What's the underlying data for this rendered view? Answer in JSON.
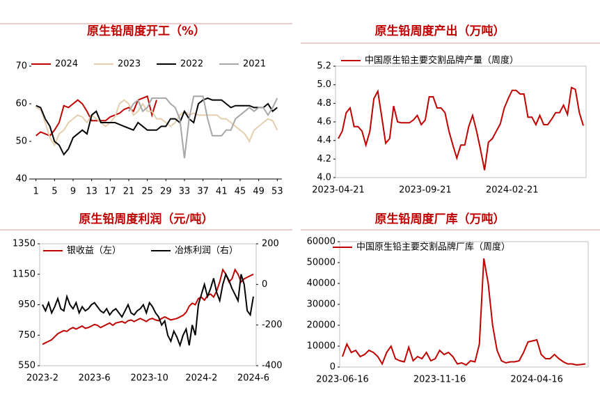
{
  "chart_data": [
    {
      "type": "line",
      "title": "原生铅周度开工（%）",
      "x": [
        1,
        2,
        3,
        4,
        5,
        6,
        7,
        8,
        9,
        10,
        11,
        12,
        13,
        14,
        15,
        16,
        17,
        18,
        19,
        20,
        21,
        22,
        23,
        24,
        25,
        26,
        27,
        28,
        29,
        30,
        31,
        32,
        33,
        34,
        35,
        36,
        37,
        38,
        39,
        40,
        41,
        42,
        43,
        44,
        45,
        46,
        47,
        48,
        49,
        50,
        51,
        52,
        53
      ],
      "xlim": [
        0,
        54
      ],
      "xticks": [
        1,
        5,
        9,
        13,
        17,
        21,
        25,
        29,
        33,
        37,
        41,
        45,
        49,
        53
      ],
      "ylim": [
        40,
        70
      ],
      "yticks": [
        40,
        50,
        60,
        70
      ],
      "series": [
        {
          "name": "2024",
          "color": "#c00000",
          "values": [
            51.5,
            52.5,
            52,
            51.5,
            53,
            55,
            59.5,
            59,
            60,
            61,
            60,
            58,
            55.5,
            55.5,
            55.5,
            55.5,
            56.5,
            57,
            57.5,
            58.5,
            59,
            58,
            61,
            61.5,
            62,
            57,
            61,
            null,
            null,
            null,
            null,
            null,
            null,
            null,
            null,
            null,
            null,
            null,
            null,
            null,
            null,
            null,
            null,
            null,
            null,
            null,
            null,
            null,
            null,
            null,
            null,
            null,
            null
          ]
        },
        {
          "name": "2023",
          "color": "#e3cfad",
          "values": [
            59,
            58.5,
            55,
            51,
            49,
            52,
            53,
            55,
            56,
            57,
            56.5,
            55,
            57,
            56,
            55,
            54,
            55,
            56.5,
            60,
            61,
            60,
            57,
            58,
            60,
            58,
            58,
            56,
            56,
            55,
            54,
            55,
            57,
            58,
            57,
            57.5,
            57,
            57,
            57,
            57,
            57,
            56,
            56,
            55,
            54,
            53,
            52,
            50,
            53,
            54,
            55,
            56,
            55.5,
            53
          ]
        },
        {
          "name": "2022",
          "color": "#000000",
          "values": [
            59.5,
            59,
            56,
            54,
            50,
            49,
            46.5,
            48,
            51,
            52,
            53,
            52,
            57,
            58,
            55,
            55,
            55,
            55,
            54.5,
            54,
            53.5,
            53,
            55,
            54,
            53,
            53,
            53,
            54,
            54,
            56,
            56,
            55,
            58,
            56,
            55,
            60,
            61,
            61.5,
            61,
            61,
            61,
            60,
            59,
            59.5,
            59.5,
            59.5,
            59.5,
            59,
            59,
            59,
            60,
            58,
            59
          ]
        },
        {
          "name": "2021",
          "color": "#a6a6a6",
          "values": [
            null,
            null,
            null,
            null,
            null,
            null,
            null,
            null,
            null,
            null,
            null,
            null,
            null,
            null,
            null,
            null,
            null,
            null,
            null,
            null,
            58,
            60,
            61,
            58,
            59,
            61.5,
            61.5,
            61.5,
            61.5,
            60,
            59,
            56,
            45.5,
            56,
            62,
            62,
            62,
            56,
            51.5,
            51.5,
            51.5,
            53,
            53,
            56,
            57,
            58,
            59,
            58,
            59,
            59,
            57,
            59,
            61.5
          ]
        }
      ]
    },
    {
      "type": "line",
      "title": "原生铅周度产出（万吨）",
      "categories": [
        "2023-04-21",
        null,
        null,
        null,
        null,
        null,
        null,
        null,
        null,
        null,
        null,
        null,
        null,
        null,
        null,
        null,
        null,
        null,
        null,
        null,
        null,
        null,
        "2023-09-21",
        null,
        null,
        null,
        null,
        null,
        null,
        null,
        null,
        null,
        null,
        null,
        null,
        null,
        null,
        null,
        null,
        null,
        null,
        null,
        null,
        null,
        "2024-02-21",
        null,
        null,
        null,
        null,
        null,
        null,
        null,
        null,
        null,
        null,
        null,
        null,
        null,
        null,
        null,
        null,
        null,
        null
      ],
      "ylim": [
        4,
        5.2
      ],
      "yticks": [
        {
          "value": 4,
          "label": "4.0"
        },
        4.2,
        4.4,
        4.6,
        4.8,
        {
          "value": 5,
          "label": "5.0"
        },
        5.2
      ],
      "series": [
        {
          "name": "中国原生铅主要交割品牌产量（周度）",
          "color": "#c00000",
          "values": [
            4.42,
            4.5,
            4.7,
            4.75,
            4.55,
            4.55,
            4.5,
            4.35,
            4.5,
            4.85,
            4.93,
            4.65,
            4.37,
            4.42,
            4.77,
            4.6,
            4.59,
            4.59,
            4.59,
            4.62,
            4.67,
            4.57,
            4.62,
            4.87,
            4.87,
            4.75,
            4.75,
            4.7,
            4.5,
            4.35,
            4.21,
            4.35,
            4.35,
            4.55,
            4.67,
            4.5,
            4.3,
            4.08,
            4.38,
            4.42,
            4.5,
            4.58,
            4.75,
            4.85,
            4.94,
            4.94,
            4.9,
            4.9,
            4.65,
            4.65,
            4.57,
            4.67,
            4.57,
            4.57,
            4.63,
            4.7,
            4.7,
            4.78,
            4.68,
            4.97,
            4.95,
            4.7,
            4.56
          ]
        }
      ]
    },
    {
      "type": "line",
      "title": "原生铅周度利润（元/吨）",
      "categories": [
        "2023-2",
        null,
        null,
        null,
        null,
        null,
        null,
        null,
        null,
        null,
        null,
        null,
        null,
        null,
        null,
        null,
        null,
        "2023-6",
        null,
        null,
        null,
        null,
        null,
        null,
        null,
        null,
        null,
        null,
        null,
        null,
        null,
        null,
        null,
        null,
        null,
        "2023-10",
        null,
        null,
        null,
        null,
        null,
        null,
        null,
        null,
        null,
        null,
        null,
        null,
        null,
        null,
        null,
        null,
        "2024-2",
        null,
        null,
        null,
        null,
        null,
        null,
        null,
        null,
        null,
        null,
        null,
        null,
        null,
        null,
        null,
        null,
        "2024-6"
      ],
      "ylim": [
        550,
        1350
      ],
      "yticks": [
        550,
        750,
        950,
        1150,
        1350
      ],
      "y2lim": [
        -400,
        200
      ],
      "y2ticks": [
        -400,
        -200,
        0,
        200
      ],
      "series": [
        {
          "name": "银收益（左）",
          "color": "#c00000",
          "values": [
            690,
            700,
            710,
            720,
            740,
            760,
            770,
            780,
            775,
            790,
            800,
            790,
            800,
            810,
            795,
            800,
            810,
            820,
            815,
            800,
            810,
            820,
            830,
            815,
            830,
            835,
            840,
            830,
            845,
            850,
            840,
            850,
            860,
            850,
            840,
            855,
            860,
            850,
            845,
            860,
            870,
            860,
            850,
            855,
            860,
            870,
            880,
            900,
            940,
            960,
            950,
            990,
            1000,
            980,
            1010,
            1020,
            1000,
            1040,
            1100,
            1180,
            1150,
            1100,
            1120,
            1180,
            1150,
            1100,
            1120,
            1130,
            1140,
            1150
          ]
        },
        {
          "name": "冶炼利润（右）",
          "color": "#000000",
          "axis": "y2",
          "values": [
            -100,
            -130,
            -90,
            -140,
            -110,
            -70,
            -120,
            -130,
            -60,
            -100,
            -120,
            -90,
            -140,
            -110,
            -130,
            -120,
            -100,
            -90,
            -110,
            -130,
            -140,
            -120,
            -150,
            -130,
            -120,
            -140,
            -160,
            -130,
            -100,
            -140,
            -150,
            -130,
            -120,
            -100,
            -140,
            -90,
            -110,
            -140,
            -160,
            -200,
            -180,
            -250,
            -280,
            -230,
            -260,
            -300,
            -250,
            -220,
            -300,
            -200,
            -250,
            -100,
            -50,
            0,
            -60,
            -20,
            30,
            -40,
            -80,
            0,
            50,
            20,
            -20,
            -50,
            -80,
            50,
            0,
            -130,
            -150,
            -60
          ]
        }
      ]
    },
    {
      "type": "line",
      "title": "原生铅周度厂库（万吨）",
      "categories": [
        "2023-06-16",
        null,
        null,
        null,
        null,
        null,
        null,
        null,
        null,
        null,
        null,
        null,
        null,
        null,
        null,
        null,
        null,
        null,
        null,
        null,
        null,
        null,
        "2023-11-16",
        null,
        null,
        null,
        null,
        null,
        null,
        null,
        null,
        null,
        null,
        null,
        null,
        null,
        null,
        null,
        null,
        null,
        null,
        null,
        null,
        null,
        "2024-04-16",
        null,
        null,
        null,
        null,
        null,
        null,
        null,
        null,
        null,
        null,
        null
      ],
      "ylim": [
        0,
        60000
      ],
      "yticks": [
        0,
        10000,
        20000,
        30000,
        40000,
        50000,
        60000
      ],
      "series": [
        {
          "name": "中国原生铅主要交割品牌厂库（周度）",
          "color": "#c00000",
          "values": [
            5000,
            11000,
            7000,
            8000,
            5000,
            6000,
            8000,
            7000,
            5000,
            1500,
            7000,
            10000,
            4000,
            3000,
            2500,
            9500,
            3000,
            5000,
            4000,
            7000,
            3000,
            4000,
            8000,
            6000,
            7000,
            5000,
            1500,
            2000,
            1000,
            3000,
            2500,
            11000,
            52000,
            40000,
            20000,
            8000,
            3000,
            2000,
            2500,
            2500,
            3000,
            7000,
            12000,
            12500,
            13000,
            6000,
            4000,
            4000,
            6000,
            4000,
            2500,
            1500,
            1500,
            1000,
            1200,
            1500
          ]
        }
      ]
    }
  ]
}
